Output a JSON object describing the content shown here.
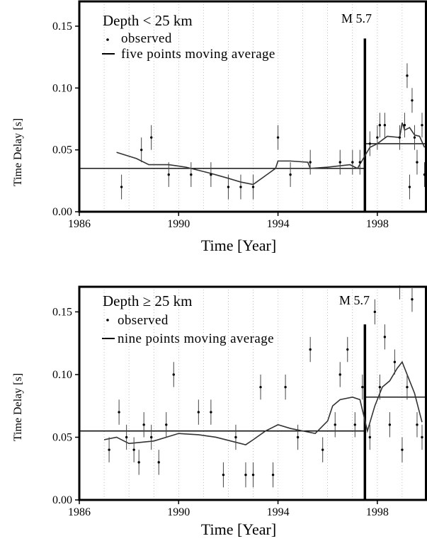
{
  "chart_data": [
    {
      "type": "scatter",
      "title": "Depth < 25 km",
      "annotation": "M 5.7",
      "xlabel": "Time [Year]",
      "ylabel": "Time Delay [s]",
      "xlim": [
        1986,
        2000
      ],
      "ylim": [
        0.0,
        0.17
      ],
      "x_ticks": [
        "1986",
        "1990",
        "1994",
        "1998"
      ],
      "x_tick_values": [
        1986,
        1990,
        1994,
        1998
      ],
      "y_ticks": [
        "0.00",
        "0.05",
        "0.10",
        "0.15"
      ],
      "y_tick_values": [
        0.0,
        0.05,
        0.1,
        0.15
      ],
      "grid": true,
      "legend_position": "top-left",
      "legend": {
        "observed": "observed",
        "average": "five points moving average"
      },
      "event_year": 1997.5,
      "event_bar_top": 0.14,
      "mean_levels": [
        {
          "x": [
            1986,
            1997.5
          ],
          "y": 0.035
        },
        {
          "x": [
            1997.5,
            2000
          ],
          "y": 0.055
        }
      ],
      "observed": [
        {
          "x": 1987.7,
          "y": 0.02,
          "err": 0.01
        },
        {
          "x": 1988.5,
          "y": 0.05,
          "err": 0.01
        },
        {
          "x": 1988.9,
          "y": 0.06,
          "err": 0.01
        },
        {
          "x": 1989.6,
          "y": 0.03,
          "err": 0.01
        },
        {
          "x": 1990.5,
          "y": 0.03,
          "err": 0.01
        },
        {
          "x": 1991.3,
          "y": 0.03,
          "err": 0.01
        },
        {
          "x": 1992.0,
          "y": 0.02,
          "err": 0.01
        },
        {
          "x": 1992.5,
          "y": 0.02,
          "err": 0.01
        },
        {
          "x": 1993.0,
          "y": 0.02,
          "err": 0.01
        },
        {
          "x": 1994.0,
          "y": 0.06,
          "err": 0.01
        },
        {
          "x": 1994.5,
          "y": 0.03,
          "err": 0.01
        },
        {
          "x": 1995.3,
          "y": 0.04,
          "err": 0.01
        },
        {
          "x": 1996.5,
          "y": 0.04,
          "err": 0.01
        },
        {
          "x": 1997.0,
          "y": 0.04,
          "err": 0.01
        },
        {
          "x": 1997.3,
          "y": 0.04,
          "err": 0.01
        },
        {
          "x": 1997.7,
          "y": 0.055,
          "err": 0.01
        },
        {
          "x": 1998.0,
          "y": 0.06,
          "err": 0.01
        },
        {
          "x": 1998.1,
          "y": 0.07,
          "err": 0.01
        },
        {
          "x": 1998.3,
          "y": 0.07,
          "err": 0.01
        },
        {
          "x": 1998.9,
          "y": 0.06,
          "err": 0.01
        },
        {
          "x": 1999.1,
          "y": 0.07,
          "err": 0.01
        },
        {
          "x": 1999.2,
          "y": 0.11,
          "err": 0.01
        },
        {
          "x": 1999.3,
          "y": 0.02,
          "err": 0.01
        },
        {
          "x": 1999.4,
          "y": 0.09,
          "err": 0.01
        },
        {
          "x": 1999.5,
          "y": 0.06,
          "err": 0.01
        },
        {
          "x": 1999.6,
          "y": 0.04,
          "err": 0.01
        },
        {
          "x": 1999.8,
          "y": 0.07,
          "err": 0.01
        },
        {
          "x": 1999.9,
          "y": 0.03,
          "err": 0.01
        }
      ],
      "moving_average": {
        "x": [
          1987.5,
          1988.3,
          1988.8,
          1989.6,
          1990.3,
          1991.3,
          1992.0,
          1992.5,
          1993.0,
          1993.9,
          1994.0,
          1994.5,
          1995.2,
          1995.3,
          1996.0,
          1996.9,
          1997.2,
          1997.7,
          1998.0,
          1998.4,
          1998.9,
          1999.0,
          1999.1,
          1999.3,
          1999.5,
          1999.7,
          1999.9
        ],
        "y": [
          0.048,
          0.043,
          0.038,
          0.038,
          0.036,
          0.031,
          0.027,
          0.024,
          0.022,
          0.035,
          0.041,
          0.041,
          0.04,
          0.035,
          0.036,
          0.038,
          0.035,
          0.052,
          0.055,
          0.061,
          0.06,
          0.072,
          0.066,
          0.068,
          0.062,
          0.061,
          0.052
        ]
      }
    },
    {
      "type": "scatter",
      "title": "Depth ≥ 25 km",
      "annotation": "M 5.7",
      "xlabel": "Time [Year]",
      "ylabel": "Time Delay [s]",
      "xlim": [
        1986,
        2000
      ],
      "ylim": [
        0.0,
        0.17
      ],
      "x_ticks": [
        "1986",
        "1990",
        "1994",
        "1998"
      ],
      "x_tick_values": [
        1986,
        1990,
        1994,
        1998
      ],
      "y_ticks": [
        "0.00",
        "0.05",
        "0.10",
        "0.15"
      ],
      "y_tick_values": [
        0.0,
        0.05,
        0.1,
        0.15
      ],
      "grid": true,
      "legend_position": "top-left",
      "legend": {
        "observed": "observed",
        "average": "nine points moving average"
      },
      "event_year": 1997.5,
      "event_bar_top": 0.14,
      "mean_levels": [
        {
          "x": [
            1986,
            1997.5
          ],
          "y": 0.055
        },
        {
          "x": [
            1997.5,
            2000
          ],
          "y": 0.082
        }
      ],
      "observed": [
        {
          "x": 1987.2,
          "y": 0.04,
          "err": 0.01
        },
        {
          "x": 1987.6,
          "y": 0.07,
          "err": 0.01
        },
        {
          "x": 1987.9,
          "y": 0.05,
          "err": 0.01
        },
        {
          "x": 1988.2,
          "y": 0.04,
          "err": 0.01
        },
        {
          "x": 1988.4,
          "y": 0.03,
          "err": 0.01
        },
        {
          "x": 1988.6,
          "y": 0.06,
          "err": 0.01
        },
        {
          "x": 1988.9,
          "y": 0.05,
          "err": 0.01
        },
        {
          "x": 1989.2,
          "y": 0.03,
          "err": 0.01
        },
        {
          "x": 1989.5,
          "y": 0.06,
          "err": 0.01
        },
        {
          "x": 1989.8,
          "y": 0.1,
          "err": 0.01
        },
        {
          "x": 1990.8,
          "y": 0.07,
          "err": 0.01
        },
        {
          "x": 1991.3,
          "y": 0.07,
          "err": 0.01
        },
        {
          "x": 1991.8,
          "y": 0.02,
          "err": 0.01
        },
        {
          "x": 1992.3,
          "y": 0.05,
          "err": 0.01
        },
        {
          "x": 1992.7,
          "y": 0.02,
          "err": 0.01
        },
        {
          "x": 1993.0,
          "y": 0.02,
          "err": 0.01
        },
        {
          "x": 1993.3,
          "y": 0.09,
          "err": 0.01
        },
        {
          "x": 1993.8,
          "y": 0.02,
          "err": 0.01
        },
        {
          "x": 1994.3,
          "y": 0.09,
          "err": 0.01
        },
        {
          "x": 1994.8,
          "y": 0.05,
          "err": 0.01
        },
        {
          "x": 1995.3,
          "y": 0.12,
          "err": 0.01
        },
        {
          "x": 1995.8,
          "y": 0.04,
          "err": 0.01
        },
        {
          "x": 1996.3,
          "y": 0.06,
          "err": 0.01
        },
        {
          "x": 1996.5,
          "y": 0.1,
          "err": 0.01
        },
        {
          "x": 1996.8,
          "y": 0.12,
          "err": 0.01
        },
        {
          "x": 1997.1,
          "y": 0.06,
          "err": 0.01
        },
        {
          "x": 1997.4,
          "y": 0.09,
          "err": 0.01
        },
        {
          "x": 1997.7,
          "y": 0.05,
          "err": 0.01
        },
        {
          "x": 1997.9,
          "y": 0.15,
          "err": 0.01
        },
        {
          "x": 1998.1,
          "y": 0.09,
          "err": 0.01
        },
        {
          "x": 1998.3,
          "y": 0.13,
          "err": 0.01
        },
        {
          "x": 1998.5,
          "y": 0.06,
          "err": 0.01
        },
        {
          "x": 1998.7,
          "y": 0.11,
          "err": 0.01
        },
        {
          "x": 1998.9,
          "y": 0.17,
          "err": 0.01
        },
        {
          "x": 1999.0,
          "y": 0.04,
          "err": 0.01
        },
        {
          "x": 1999.2,
          "y": 0.09,
          "err": 0.01
        },
        {
          "x": 1999.4,
          "y": 0.16,
          "err": 0.01
        },
        {
          "x": 1999.6,
          "y": 0.06,
          "err": 0.01
        },
        {
          "x": 1999.8,
          "y": 0.05,
          "err": 0.01
        }
      ],
      "moving_average": {
        "x": [
          1987.0,
          1987.5,
          1988.0,
          1988.5,
          1989.0,
          1989.5,
          1990.0,
          1990.8,
          1991.5,
          1992.3,
          1992.7,
          1993.0,
          1993.5,
          1994.0,
          1994.5,
          1995.0,
          1995.5,
          1996.0,
          1996.2,
          1996.5,
          1997.0,
          1997.3,
          1997.6,
          1997.9,
          1998.2,
          1998.5,
          1998.8,
          1999.0,
          1999.2,
          1999.5,
          1999.8
        ],
        "y": [
          0.048,
          0.05,
          0.045,
          0.046,
          0.047,
          0.05,
          0.053,
          0.052,
          0.05,
          0.046,
          0.044,
          0.048,
          0.055,
          0.06,
          0.057,
          0.055,
          0.053,
          0.063,
          0.075,
          0.08,
          0.082,
          0.08,
          0.055,
          0.075,
          0.09,
          0.095,
          0.105,
          0.11,
          0.1,
          0.085,
          0.062
        ]
      }
    }
  ]
}
